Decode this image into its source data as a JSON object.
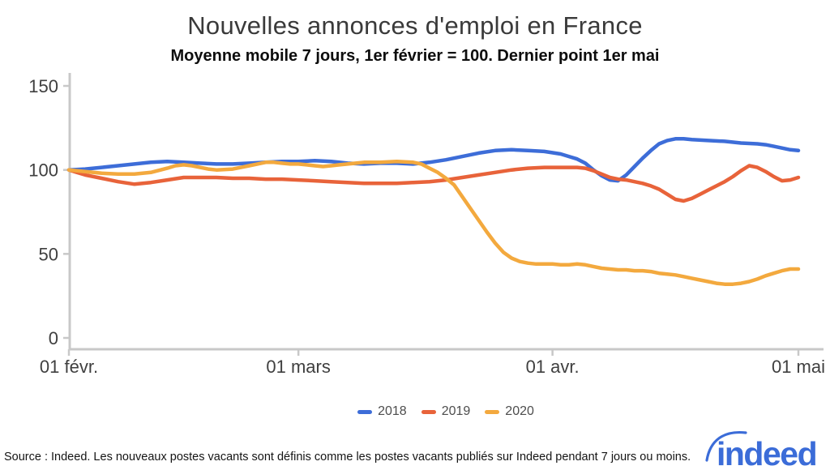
{
  "chart": {
    "title": "Nouvelles annonces d'emploi en France",
    "subtitle": "Moyenne mobile 7 jours, 1er février = 100. Dernier point 1er mai"
  },
  "footer": {
    "source": "Source : Indeed. Les nouveaux postes vacants sont définis comme les postes vacants publiés sur Indeed pendant 7 jours ou moins.",
    "logo_text": "indeed",
    "logo_color": "#3b6cd8"
  },
  "colors": {
    "axis": "#c8c8c8",
    "tick_label": "#3f3f3f",
    "series_2018": "#3d6dd8",
    "series_2019": "#e8633a",
    "series_2020": "#f3a93e"
  },
  "chart_data": {
    "type": "line",
    "title": "Nouvelles annonces d'emploi en France",
    "subtitle": "Moyenne mobile 7 jours, 1er février = 100. Dernier point 1er mai",
    "x_unit": "days since 1 February",
    "x_range": [
      0,
      89
    ],
    "y_range": [
      0,
      150
    ],
    "y_ticks": [
      "0",
      "50",
      "100",
      "150"
    ],
    "x_ticks": [
      {
        "day": 0,
        "label": "01 févr."
      },
      {
        "day": 28,
        "label": "01 mars"
      },
      {
        "day": 59,
        "label": "01 avr."
      },
      {
        "day": 89,
        "label": "01 mai"
      }
    ],
    "grid": false,
    "legend_position": "bottom-center",
    "series": [
      {
        "name": "2018",
        "color": "#3d6dd8",
        "points": [
          [
            0,
            100
          ],
          [
            2,
            100.5
          ],
          [
            4,
            101.5
          ],
          [
            6,
            102.5
          ],
          [
            8,
            103.5
          ],
          [
            10,
            104.5
          ],
          [
            12,
            105
          ],
          [
            14,
            104.5
          ],
          [
            16,
            104
          ],
          [
            18,
            103.5
          ],
          [
            20,
            103.5
          ],
          [
            22,
            104
          ],
          [
            24,
            104.5
          ],
          [
            26,
            105
          ],
          [
            28,
            105
          ],
          [
            30,
            105.5
          ],
          [
            32,
            105
          ],
          [
            34,
            104
          ],
          [
            36,
            103.5
          ],
          [
            38,
            104
          ],
          [
            40,
            104
          ],
          [
            42,
            103.5
          ],
          [
            44,
            104.5
          ],
          [
            46,
            106
          ],
          [
            48,
            108
          ],
          [
            50,
            110
          ],
          [
            52,
            111.5
          ],
          [
            54,
            112
          ],
          [
            56,
            111.5
          ],
          [
            58,
            111
          ],
          [
            60,
            109.5
          ],
          [
            61,
            108
          ],
          [
            62,
            106.5
          ],
          [
            63,
            104
          ],
          [
            64,
            100
          ],
          [
            65,
            96.5
          ],
          [
            66,
            94
          ],
          [
            67,
            93.5
          ],
          [
            68,
            97
          ],
          [
            69,
            102
          ],
          [
            70,
            107
          ],
          [
            71,
            111.5
          ],
          [
            72,
            115.5
          ],
          [
            73,
            117.5
          ],
          [
            74,
            118.5
          ],
          [
            75,
            118.5
          ],
          [
            76,
            118
          ],
          [
            78,
            117.5
          ],
          [
            80,
            117
          ],
          [
            82,
            116
          ],
          [
            84,
            115.5
          ],
          [
            85,
            115
          ],
          [
            86,
            114
          ],
          [
            87,
            113
          ],
          [
            88,
            112
          ],
          [
            89,
            111.5
          ]
        ]
      },
      {
        "name": "2019",
        "color": "#e8633a",
        "points": [
          [
            0,
            100
          ],
          [
            1,
            98.5
          ],
          [
            2,
            97
          ],
          [
            4,
            95
          ],
          [
            6,
            93
          ],
          [
            8,
            91.5
          ],
          [
            10,
            92.5
          ],
          [
            12,
            94
          ],
          [
            14,
            95.5
          ],
          [
            16,
            95.5
          ],
          [
            18,
            95.5
          ],
          [
            20,
            95
          ],
          [
            22,
            95
          ],
          [
            24,
            94.5
          ],
          [
            26,
            94.5
          ],
          [
            28,
            94
          ],
          [
            30,
            93.5
          ],
          [
            32,
            93
          ],
          [
            34,
            92.5
          ],
          [
            36,
            92
          ],
          [
            38,
            92
          ],
          [
            40,
            92
          ],
          [
            42,
            92.5
          ],
          [
            44,
            93
          ],
          [
            46,
            94
          ],
          [
            48,
            95.5
          ],
          [
            50,
            97
          ],
          [
            52,
            98.5
          ],
          [
            54,
            100
          ],
          [
            56,
            101
          ],
          [
            58,
            101.5
          ],
          [
            60,
            101.5
          ],
          [
            62,
            101.5
          ],
          [
            63,
            101
          ],
          [
            64,
            99.5
          ],
          [
            65,
            97.5
          ],
          [
            66,
            95.5
          ],
          [
            67,
            94.5
          ],
          [
            68,
            94
          ],
          [
            69,
            93
          ],
          [
            70,
            92
          ],
          [
            71,
            90.5
          ],
          [
            72,
            88.5
          ],
          [
            73,
            85.5
          ],
          [
            74,
            82.5
          ],
          [
            75,
            81.5
          ],
          [
            76,
            83
          ],
          [
            77,
            85.5
          ],
          [
            78,
            88
          ],
          [
            79,
            90.5
          ],
          [
            80,
            93
          ],
          [
            81,
            96
          ],
          [
            82,
            99.5
          ],
          [
            83,
            102.5
          ],
          [
            84,
            101.5
          ],
          [
            85,
            99
          ],
          [
            86,
            96
          ],
          [
            87,
            93.5
          ],
          [
            88,
            94
          ],
          [
            89,
            95.5
          ]
        ]
      },
      {
        "name": "2020",
        "color": "#f3a93e",
        "points": [
          [
            0,
            100
          ],
          [
            1,
            99.5
          ],
          [
            2,
            99
          ],
          [
            4,
            98
          ],
          [
            6,
            97.5
          ],
          [
            8,
            97.5
          ],
          [
            10,
            98.5
          ],
          [
            12,
            101
          ],
          [
            13,
            102.5
          ],
          [
            14,
            103
          ],
          [
            15,
            102.5
          ],
          [
            16,
            101.5
          ],
          [
            17,
            100.5
          ],
          [
            18,
            100
          ],
          [
            20,
            100.5
          ],
          [
            21,
            101.5
          ],
          [
            22,
            102.5
          ],
          [
            23,
            103.5
          ],
          [
            24,
            104.5
          ],
          [
            25,
            104.5
          ],
          [
            26,
            104
          ],
          [
            27,
            103.5
          ],
          [
            28,
            103.5
          ],
          [
            29,
            103
          ],
          [
            30,
            102.5
          ],
          [
            31,
            102
          ],
          [
            32,
            102.5
          ],
          [
            33,
            103
          ],
          [
            34,
            103.5
          ],
          [
            35,
            104
          ],
          [
            36,
            104.5
          ],
          [
            38,
            104.5
          ],
          [
            40,
            105
          ],
          [
            42,
            104.5
          ],
          [
            43,
            103.5
          ],
          [
            44,
            101
          ],
          [
            45,
            98.5
          ],
          [
            46,
            95
          ],
          [
            47,
            91
          ],
          [
            48,
            84
          ],
          [
            49,
            77
          ],
          [
            50,
            70
          ],
          [
            51,
            63
          ],
          [
            52,
            56.5
          ],
          [
            53,
            51
          ],
          [
            54,
            47.5
          ],
          [
            55,
            45.5
          ],
          [
            56,
            44.5
          ],
          [
            57,
            44
          ],
          [
            58,
            44
          ],
          [
            59,
            44
          ],
          [
            60,
            43.5
          ],
          [
            61,
            43.5
          ],
          [
            62,
            44
          ],
          [
            63,
            43.5
          ],
          [
            64,
            42.5
          ],
          [
            65,
            41.5
          ],
          [
            66,
            41
          ],
          [
            67,
            40.5
          ],
          [
            68,
            40.5
          ],
          [
            69,
            40
          ],
          [
            70,
            40
          ],
          [
            71,
            39.5
          ],
          [
            72,
            38.5
          ],
          [
            73,
            38
          ],
          [
            74,
            37.5
          ],
          [
            75,
            36.5
          ],
          [
            76,
            35.5
          ],
          [
            77,
            34.5
          ],
          [
            78,
            33.5
          ],
          [
            79,
            32.5
          ],
          [
            80,
            32
          ],
          [
            81,
            32
          ],
          [
            82,
            32.5
          ],
          [
            83,
            33.5
          ],
          [
            84,
            35
          ],
          [
            85,
            37
          ],
          [
            86,
            38.5
          ],
          [
            87,
            40
          ],
          [
            88,
            41
          ],
          [
            89,
            41
          ]
        ]
      }
    ]
  }
}
